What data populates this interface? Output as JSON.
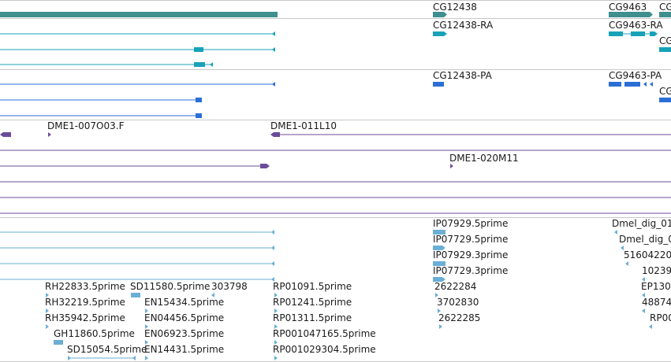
{
  "colors": {
    "gene": "#3f8f8f",
    "mrna": "#17a2b8",
    "protein": "#2b6fd6",
    "clone": "#6b4c9a",
    "est": "#6baed6",
    "divider": "#c8c8c8"
  },
  "tracks": {
    "genes": {
      "labels": [
        "CG12438",
        "CG9463",
        "CG"
      ]
    },
    "mrna": {
      "labels": [
        "CG12438-RA",
        "CG9463-RA",
        "CG"
      ]
    },
    "protein": {
      "labels": [
        "CG12438-PA",
        "CG9463-PA",
        "CG"
      ]
    },
    "clones": {
      "labels": [
        "DME1-007O03.F",
        "DME1-011L10",
        "DME1-020M11"
      ]
    },
    "ests": {
      "col1": [
        "RH22833.5prime",
        "RH32219.5prime",
        "RH35942.5prime",
        "GH11860.5prime",
        "SD15054.5prime"
      ],
      "col2": [
        "SD11580.5prime",
        "EN15434.5prime",
        "EN04456.5prime",
        "EN06923.5prime",
        "EN14431.5prime"
      ],
      "col3": [
        "303798"
      ],
      "col4": [
        "RP01091.5prime",
        "RP01241.5prime",
        "RP01311.5prime",
        "RP001047165.5prime",
        "RP001029304.5prime"
      ],
      "col5": [
        "IP07929.5prime",
        "IP07729.5prime",
        "IP07929.3prime",
        "IP07729.3prime",
        "2622284",
        "3702830",
        "2622285"
      ],
      "col6": [
        "Dmel_dig_01",
        "Dmel_dig_0",
        "51604220",
        "10239",
        "EP130",
        "48874",
        "RP00"
      ]
    }
  }
}
